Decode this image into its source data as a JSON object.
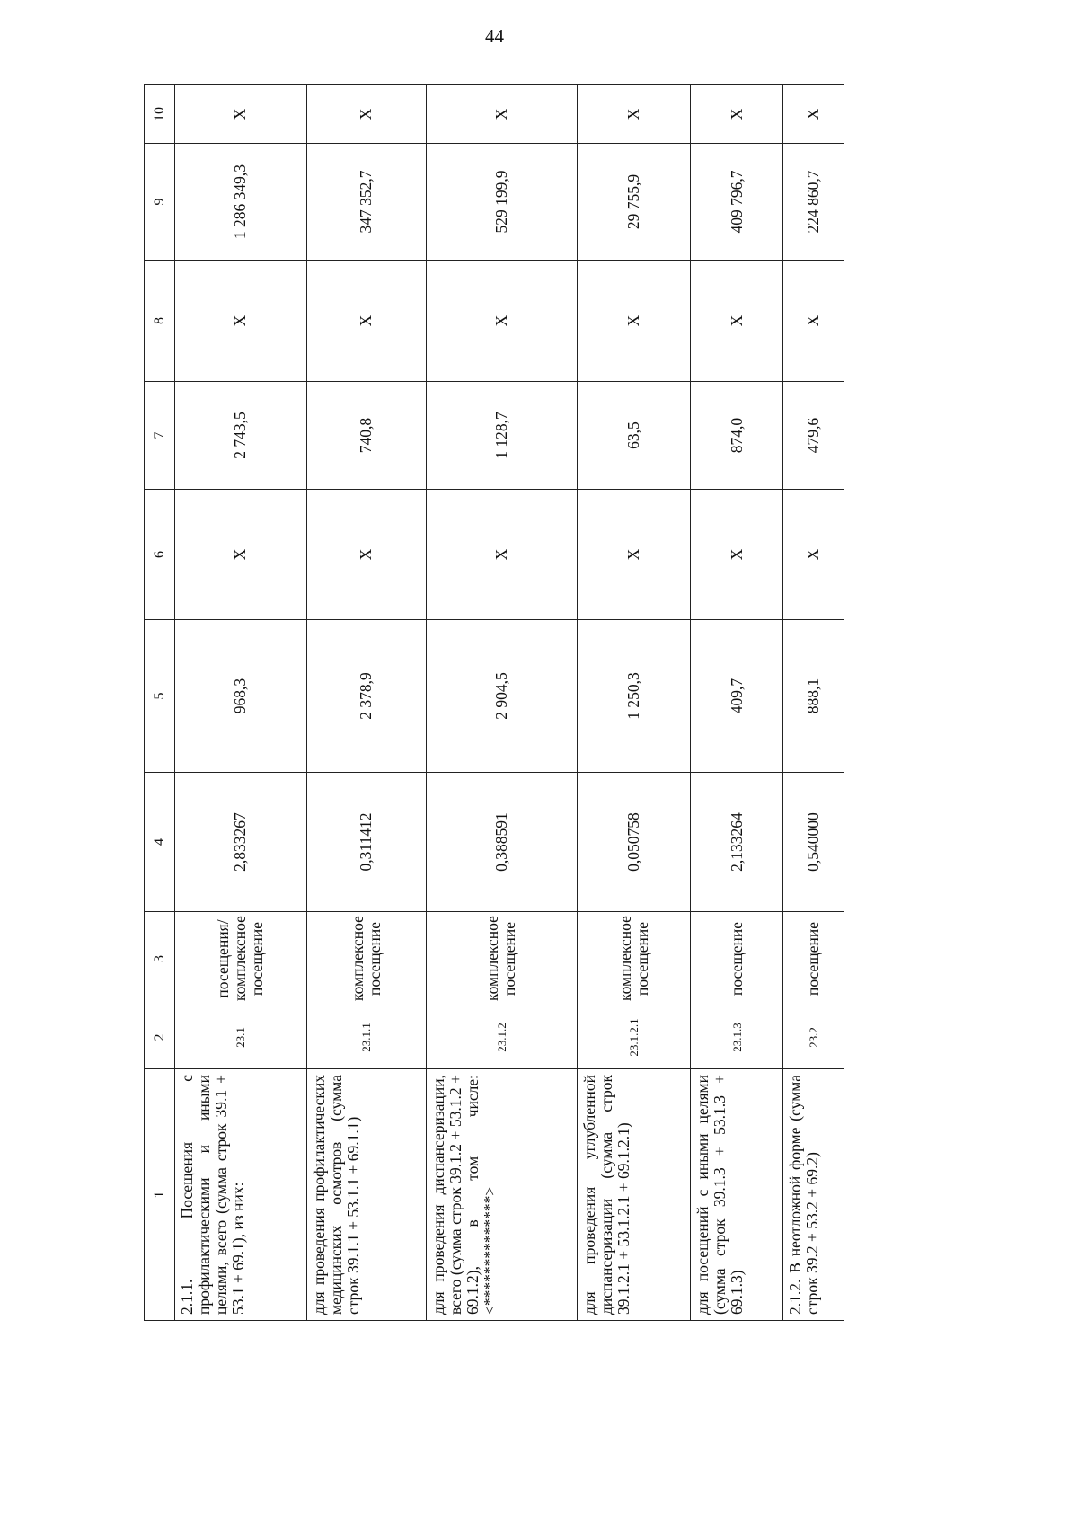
{
  "page_number": "44",
  "table": {
    "header": [
      "1",
      "2",
      "3",
      "4",
      "5",
      "6",
      "7",
      "8",
      "9",
      "10"
    ],
    "rows": [
      [
        "2.1.1. Посещения с профилактическими и иными целями, всего (сумма строк 39.1 + 53.1 + 69.1), из них:",
        "23.1",
        "посещения/ комплексное посещение",
        "2,833267",
        "968,3",
        "X",
        "2 743,5",
        "X",
        "1 286 349,3",
        "X"
      ],
      [
        "для проведения профилактических медицинских осмотров (сумма строк 39.1.1 + 53.1.1 + 69.1.1)",
        "23.1.1",
        "комплексное посещение",
        "0,311412",
        "2 378,9",
        "X",
        "740,8",
        "X",
        "347 352,7",
        "X"
      ],
      [
        "для проведения диспансеризации, всего (сумма строк 39.1.2 + 53.1.2 + 69.1.2), в том числе: <**************>",
        "23.1.2",
        "комплексное посещение",
        "0,388591",
        "2 904,5",
        "X",
        "1 128,7",
        "X",
        "529 199,9",
        "X"
      ],
      [
        "для проведения углубленной диспансеризации (сумма строк 39.1.2.1 + 53.1.2.1 + 69.1.2.1)",
        "23.1.2.1",
        "комплексное посещение",
        "0,050758",
        "1 250,3",
        "X",
        "63,5",
        "X",
        "29 755,9",
        "X"
      ],
      [
        "для посещений с иными целями (сумма строк 39.1.3 + 53.1.3 + 69.1.3)",
        "23.1.3",
        "посещение",
        "2,133264",
        "409,7",
        "X",
        "874,0",
        "X",
        "409 796,7",
        "X"
      ],
      [
        "2.1.2. В неотложной форме (сумма строк 39.2 + 53.2 + 69.2)",
        "23.2",
        "посещение",
        "0,540000",
        "888,1",
        "X",
        "479,6",
        "X",
        "224 860,7",
        "X"
      ]
    ]
  }
}
